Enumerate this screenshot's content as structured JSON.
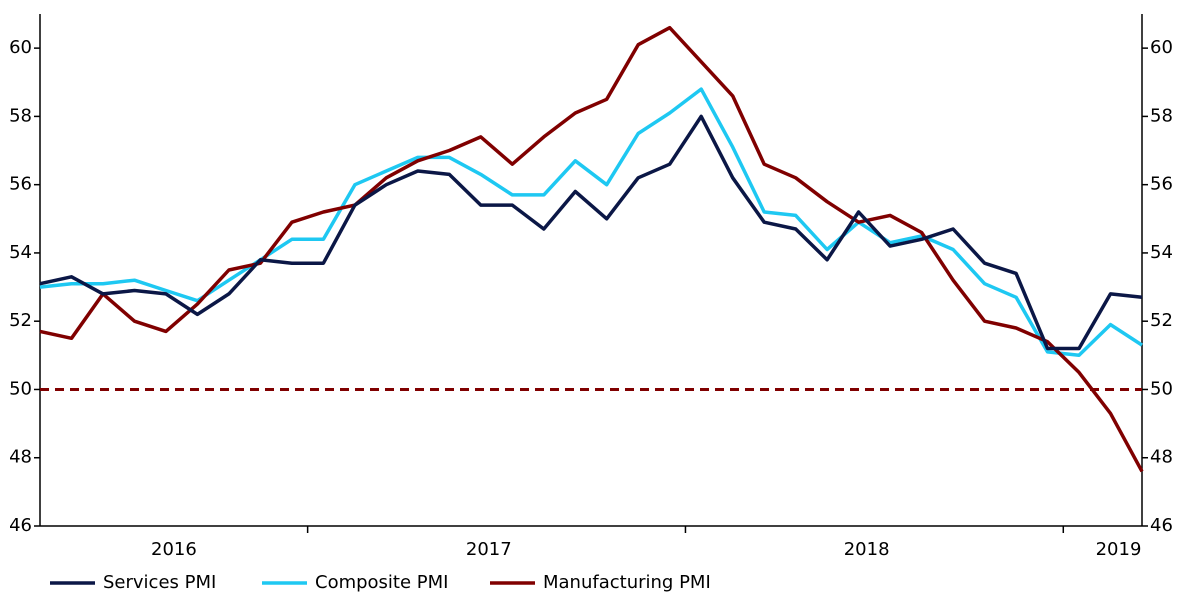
{
  "chart_data": {
    "type": "line",
    "categories": [
      null,
      null,
      null,
      null,
      "2016",
      null,
      null,
      null,
      null,
      null,
      null,
      null,
      null,
      null,
      "2017",
      null,
      null,
      null,
      null,
      null,
      null,
      null,
      null,
      null,
      null,
      null,
      "2018",
      null,
      null,
      null,
      null,
      null,
      null,
      null,
      "2019",
      null
    ],
    "series": [
      {
        "name": "Services PMI",
        "color": "#0b1746",
        "values": [
          53.1,
          53.3,
          52.8,
          52.9,
          52.8,
          52.2,
          52.8,
          53.8,
          53.7,
          53.7,
          55.4,
          56.0,
          56.4,
          56.3,
          55.4,
          55.4,
          54.7,
          55.8,
          55.0,
          56.2,
          56.6,
          58.0,
          56.2,
          54.9,
          54.7,
          53.8,
          55.2,
          54.2,
          54.4,
          54.7,
          53.7,
          53.4,
          51.2,
          51.2,
          52.8,
          52.7
        ]
      },
      {
        "name": "Composite PMI",
        "color": "#1ec8f2",
        "values": [
          53.0,
          53.1,
          53.1,
          53.2,
          52.9,
          52.6,
          53.2,
          53.8,
          54.4,
          54.4,
          56.0,
          56.4,
          56.8,
          56.8,
          56.3,
          55.7,
          55.7,
          56.7,
          56.0,
          57.5,
          58.1,
          58.8,
          57.1,
          55.2,
          55.1,
          54.1,
          54.9,
          54.3,
          54.5,
          54.1,
          53.1,
          52.7,
          51.1,
          51.0,
          51.9,
          51.3
        ]
      },
      {
        "name": "Manufacturing PMI",
        "color": "#800000",
        "values": [
          51.7,
          51.5,
          52.8,
          52.0,
          51.7,
          52.5,
          53.5,
          53.7,
          54.9,
          55.2,
          55.4,
          56.2,
          56.7,
          57.0,
          57.4,
          56.6,
          57.4,
          58.1,
          58.5,
          60.1,
          60.6,
          59.6,
          58.6,
          56.6,
          56.2,
          55.5,
          54.9,
          55.1,
          54.6,
          53.2,
          52.0,
          51.8,
          51.4,
          50.5,
          49.3,
          47.6
        ]
      }
    ],
    "ylim": [
      46,
      61
    ],
    "yticks": [
      46,
      48,
      50,
      52,
      54,
      56,
      58,
      60
    ],
    "y2lim": [
      46,
      61
    ],
    "y2ticks": [
      46,
      48,
      50,
      52,
      54,
      56,
      58,
      60
    ],
    "reference_line": {
      "value": 50,
      "color": "#800000"
    },
    "grid": false,
    "legend": "bottom"
  }
}
